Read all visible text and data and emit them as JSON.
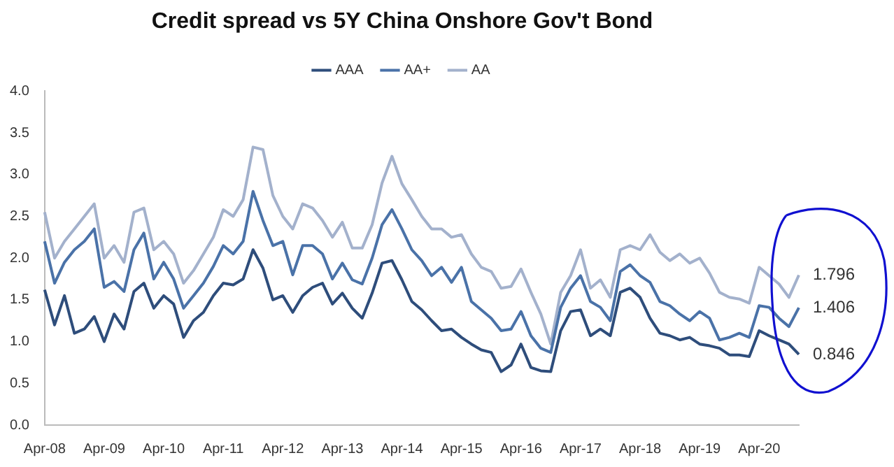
{
  "chart_data": {
    "type": "line",
    "title": "Credit spread vs 5Y China Onshore Gov't Bond",
    "categories": [
      "Apr-08",
      null,
      null,
      null,
      null,
      null,
      "Apr-09",
      null,
      null,
      null,
      null,
      null,
      "Apr-10",
      null,
      null,
      null,
      null,
      null,
      "Apr-11",
      null,
      null,
      null,
      null,
      null,
      "Apr-12",
      null,
      null,
      null,
      null,
      null,
      "Apr-13",
      null,
      null,
      null,
      null,
      null,
      "Apr-14",
      null,
      null,
      null,
      null,
      null,
      "Apr-15",
      null,
      null,
      null,
      null,
      null,
      "Apr-16",
      null,
      null,
      null,
      null,
      null,
      "Apr-17",
      null,
      null,
      null,
      null,
      null,
      "Apr-18",
      null,
      null,
      null,
      null,
      null,
      "Apr-19",
      null,
      null,
      null,
      null,
      null,
      "Apr-20",
      null,
      null,
      null,
      null
    ],
    "series": [
      {
        "name": "AAA",
        "color": "#2e4d7b",
        "values": [
          1.62,
          1.2,
          1.55,
          1.1,
          1.15,
          1.3,
          1.0,
          1.33,
          1.15,
          1.6,
          1.7,
          1.4,
          1.55,
          1.45,
          1.05,
          1.25,
          1.35,
          1.55,
          1.7,
          1.68,
          1.75,
          2.1,
          1.88,
          1.5,
          1.55,
          1.35,
          1.55,
          1.65,
          1.7,
          1.45,
          1.58,
          1.4,
          1.28,
          1.58,
          1.94,
          1.97,
          1.74,
          1.48,
          1.38,
          1.25,
          1.13,
          1.15,
          1.05,
          0.97,
          0.9,
          0.87,
          0.64,
          0.72,
          0.97,
          0.69,
          0.65,
          0.64,
          1.13,
          1.36,
          1.38,
          1.07,
          1.15,
          1.07,
          1.59,
          1.64,
          1.53,
          1.28,
          1.1,
          1.07,
          1.02,
          1.05,
          0.97,
          0.95,
          0.92,
          0.84,
          0.84,
          0.82,
          1.13,
          1.07,
          1.02,
          0.97,
          0.846
        ],
        "value_labels": [
          null,
          null,
          null,
          null,
          null,
          null,
          null,
          null,
          null,
          null,
          null,
          null,
          null,
          null,
          null,
          null,
          null,
          null,
          null,
          null,
          null,
          null,
          null,
          null,
          null,
          null,
          null,
          null,
          null,
          null,
          null,
          null,
          null,
          null,
          null,
          null,
          null,
          null,
          null,
          null,
          null,
          null,
          null,
          null,
          null,
          null,
          null,
          null,
          null,
          null,
          null,
          null,
          null,
          null,
          null,
          null,
          null,
          null,
          null,
          null,
          null,
          null,
          null,
          null,
          null,
          null,
          null,
          null,
          null,
          null,
          null,
          null,
          null,
          null,
          null,
          null,
          "0.846"
        ]
      },
      {
        "name": "AA+",
        "color": "#4a72a8",
        "values": [
          2.2,
          1.7,
          1.95,
          2.1,
          2.2,
          2.35,
          1.65,
          1.72,
          1.6,
          2.1,
          2.3,
          1.75,
          1.95,
          1.75,
          1.4,
          1.55,
          1.7,
          1.9,
          2.15,
          2.05,
          2.2,
          2.8,
          2.45,
          2.15,
          2.2,
          1.8,
          2.15,
          2.15,
          2.05,
          1.75,
          1.94,
          1.74,
          1.69,
          2.0,
          2.4,
          2.58,
          2.35,
          2.1,
          1.97,
          1.79,
          1.89,
          1.71,
          1.89,
          1.48,
          1.38,
          1.28,
          1.13,
          1.15,
          1.36,
          1.07,
          0.92,
          0.87,
          1.41,
          1.64,
          1.79,
          1.48,
          1.41,
          1.25,
          1.84,
          1.92,
          1.79,
          1.71,
          1.48,
          1.43,
          1.33,
          1.25,
          1.36,
          1.28,
          1.02,
          1.05,
          1.1,
          1.05,
          1.43,
          1.41,
          1.28,
          1.18,
          1.406
        ],
        "value_labels": [
          null,
          null,
          null,
          null,
          null,
          null,
          null,
          null,
          null,
          null,
          null,
          null,
          null,
          null,
          null,
          null,
          null,
          null,
          null,
          null,
          null,
          null,
          null,
          null,
          null,
          null,
          null,
          null,
          null,
          null,
          null,
          null,
          null,
          null,
          null,
          null,
          null,
          null,
          null,
          null,
          null,
          null,
          null,
          null,
          null,
          null,
          null,
          null,
          null,
          null,
          null,
          null,
          null,
          null,
          null,
          null,
          null,
          null,
          null,
          null,
          null,
          null,
          null,
          null,
          null,
          null,
          null,
          null,
          null,
          null,
          null,
          null,
          null,
          null,
          null,
          null,
          "1.406"
        ]
      },
      {
        "name": "AA",
        "color": "#a3b1cc",
        "values": [
          2.55,
          2.0,
          2.2,
          2.35,
          2.5,
          2.65,
          2.0,
          2.15,
          1.95,
          2.55,
          2.6,
          2.1,
          2.2,
          2.05,
          1.7,
          1.85,
          2.05,
          2.25,
          2.58,
          2.5,
          2.7,
          3.33,
          3.3,
          2.75,
          2.5,
          2.35,
          2.65,
          2.6,
          2.45,
          2.25,
          2.43,
          2.12,
          2.12,
          2.4,
          2.9,
          3.22,
          2.89,
          2.7,
          2.5,
          2.35,
          2.35,
          2.25,
          2.28,
          2.05,
          1.89,
          1.84,
          1.64,
          1.66,
          1.87,
          1.59,
          1.33,
          0.97,
          1.59,
          1.79,
          2.1,
          1.64,
          1.74,
          1.53,
          2.1,
          2.15,
          2.1,
          2.28,
          2.07,
          1.97,
          2.05,
          1.94,
          2.0,
          1.82,
          1.59,
          1.53,
          1.51,
          1.46,
          1.89,
          1.79,
          1.69,
          1.53,
          1.796
        ],
        "value_labels": [
          null,
          null,
          null,
          null,
          null,
          null,
          null,
          null,
          null,
          null,
          null,
          null,
          null,
          null,
          null,
          null,
          null,
          null,
          null,
          null,
          null,
          null,
          null,
          null,
          null,
          null,
          null,
          null,
          null,
          null,
          null,
          null,
          null,
          null,
          null,
          null,
          null,
          null,
          null,
          null,
          null,
          null,
          null,
          null,
          null,
          null,
          null,
          null,
          null,
          null,
          null,
          null,
          null,
          null,
          null,
          null,
          null,
          null,
          null,
          null,
          null,
          null,
          null,
          null,
          null,
          null,
          null,
          null,
          null,
          null,
          null,
          null,
          null,
          null,
          null,
          null,
          "1.796"
        ]
      }
    ],
    "ylim": [
      0,
      4
    ],
    "yticks": [
      {
        "value": 0,
        "label": "0.0"
      },
      {
        "value": 0.5,
        "label": "0.5"
      },
      {
        "value": 1,
        "label": "1.0"
      },
      {
        "value": 1.5,
        "label": "1.5"
      },
      {
        "value": 2,
        "label": "2.0"
      },
      {
        "value": 2.5,
        "label": "2.5"
      },
      {
        "value": 3,
        "label": "3.0"
      },
      {
        "value": 3.5,
        "label": "3.5"
      },
      {
        "value": 4,
        "label": "4.0"
      }
    ],
    "grid": false,
    "legend": "top",
    "marker": "none",
    "line_style": "solid"
  }
}
